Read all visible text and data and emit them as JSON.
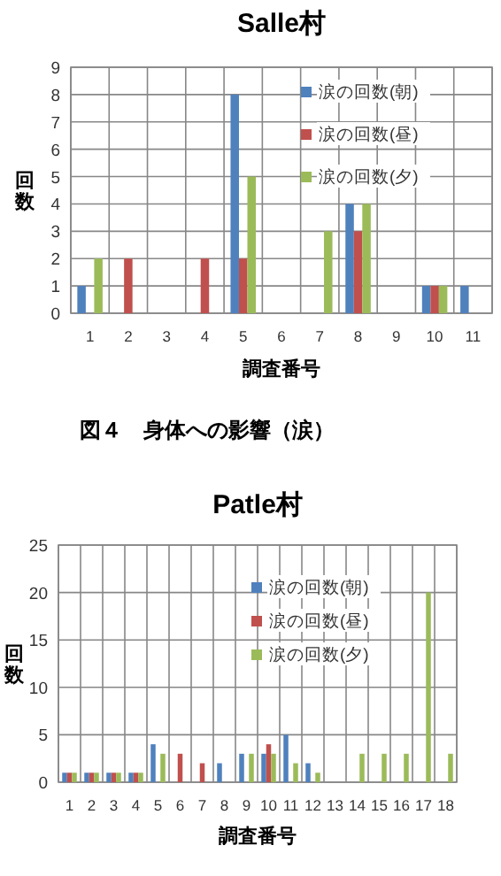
{
  "chart_data": [
    {
      "type": "bar",
      "title": "Salle村",
      "xlabel": "調査番号",
      "ylabel": "回数",
      "categories": [
        "1",
        "2",
        "3",
        "4",
        "5",
        "6",
        "7",
        "8",
        "9",
        "10",
        "11"
      ],
      "series": [
        {
          "name": "涙の回数(朝)",
          "color": "#4f81bd",
          "values": [
            1,
            null,
            null,
            null,
            8,
            null,
            null,
            4,
            null,
            1,
            1
          ]
        },
        {
          "name": "涙の回数(昼)",
          "color": "#c0504d",
          "values": [
            null,
            2,
            null,
            2,
            2,
            null,
            null,
            3,
            null,
            1,
            null
          ]
        },
        {
          "name": "涙の回数(夕)",
          "color": "#9bbb59",
          "values": [
            2,
            null,
            null,
            null,
            5,
            null,
            3,
            4,
            null,
            1,
            null
          ]
        }
      ],
      "ylim": [
        0,
        9
      ],
      "yticks": [
        0,
        1,
        2,
        3,
        4,
        5,
        6,
        7,
        8,
        9
      ],
      "grid": true,
      "legend": "top right",
      "annotations": [
        "図４　身体への影響（涙）"
      ]
    },
    {
      "type": "bar",
      "title": "Patle村",
      "xlabel": "調査番号",
      "ylabel": "回数",
      "categories": [
        "1",
        "2",
        "3",
        "4",
        "5",
        "6",
        "7",
        "8",
        "9",
        "10",
        "11",
        "12",
        "13",
        "14",
        "15",
        "16",
        "17",
        "18"
      ],
      "series": [
        {
          "name": "涙の回数(朝)",
          "color": "#4f81bd",
          "values": [
            1,
            1,
            1,
            1,
            4,
            null,
            null,
            2,
            3,
            3,
            5,
            2,
            null,
            null,
            null,
            null,
            null,
            null
          ]
        },
        {
          "name": "涙の回数(昼)",
          "color": "#c0504d",
          "values": [
            1,
            1,
            1,
            1,
            null,
            3,
            2,
            null,
            null,
            4,
            null,
            null,
            null,
            null,
            null,
            null,
            null,
            null
          ]
        },
        {
          "name": "涙の回数(夕)",
          "color": "#9bbb59",
          "values": [
            1,
            1,
            1,
            1,
            3,
            null,
            null,
            null,
            3,
            3,
            2,
            1,
            null,
            3,
            3,
            3,
            20,
            3
          ]
        }
      ],
      "ylim": [
        0,
        25
      ],
      "yticks": [
        0,
        5,
        10,
        15,
        20,
        25
      ],
      "grid": true,
      "legend": "top right"
    }
  ]
}
